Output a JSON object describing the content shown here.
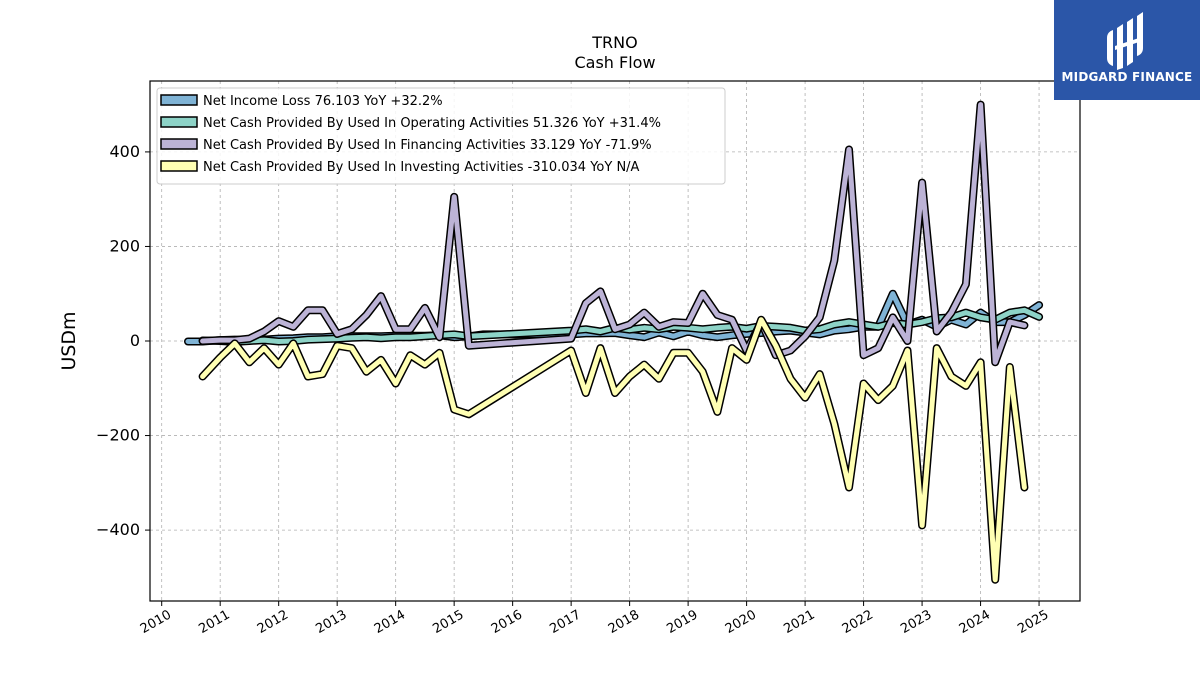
{
  "logo": {
    "text": "MIDGARD FINANCE"
  },
  "chart_data": {
    "type": "line",
    "title": "TRNO",
    "subtitle": "Cash Flow",
    "xlabel": "",
    "ylabel": "USDm",
    "xlim": [
      2009.8,
      2025.7
    ],
    "ylim": [
      -550,
      550
    ],
    "yticks": [
      -400,
      -200,
      0,
      200,
      400
    ],
    "xticks": [
      2010,
      2011,
      2012,
      2013,
      2014,
      2015,
      2016,
      2017,
      2018,
      2019,
      2020,
      2021,
      2022,
      2023,
      2024,
      2025
    ],
    "xtick_labels": [
      "2010",
      "2011",
      "2012",
      "2013",
      "2014",
      "2015",
      "2016",
      "2017",
      "2018",
      "2019",
      "2020",
      "2021",
      "2022",
      "2023",
      "2024",
      "2025"
    ],
    "grid": true,
    "legend_position": "top-left",
    "series": [
      {
        "name": "Net Income Loss  76.103 YoY +32.2%",
        "color": "#7fb3d5",
        "points": [
          [
            2010.45,
            -1
          ],
          [
            2010.7,
            -1
          ],
          [
            2011.0,
            2
          ],
          [
            2011.25,
            3
          ],
          [
            2011.5,
            2
          ],
          [
            2011.75,
            3
          ],
          [
            2012.0,
            5
          ],
          [
            2012.25,
            6
          ],
          [
            2012.5,
            8
          ],
          [
            2012.75,
            8
          ],
          [
            2013.0,
            10
          ],
          [
            2013.25,
            10
          ],
          [
            2013.5,
            10
          ],
          [
            2013.75,
            10
          ],
          [
            2014.0,
            11
          ],
          [
            2014.25,
            11
          ],
          [
            2014.5,
            11
          ],
          [
            2014.75,
            12
          ],
          [
            2015.0,
            8
          ],
          [
            2015.25,
            10
          ],
          [
            2015.5,
            14
          ],
          [
            2017.0,
            14
          ],
          [
            2017.25,
            16
          ],
          [
            2017.5,
            16
          ],
          [
            2017.75,
            17
          ],
          [
            2018.0,
            12
          ],
          [
            2018.25,
            8
          ],
          [
            2018.5,
            18
          ],
          [
            2018.75,
            10
          ],
          [
            2019.0,
            20
          ],
          [
            2019.25,
            12
          ],
          [
            2019.5,
            8
          ],
          [
            2019.75,
            12
          ],
          [
            2020.0,
            15
          ],
          [
            2020.25,
            17
          ],
          [
            2020.5,
            20
          ],
          [
            2020.75,
            22
          ],
          [
            2021.0,
            18
          ],
          [
            2021.25,
            14
          ],
          [
            2021.5,
            22
          ],
          [
            2021.75,
            25
          ],
          [
            2022.0,
            30
          ],
          [
            2022.25,
            30
          ],
          [
            2022.5,
            100
          ],
          [
            2022.75,
            35
          ],
          [
            2023.0,
            45
          ],
          [
            2023.25,
            30
          ],
          [
            2023.5,
            45
          ],
          [
            2023.75,
            35
          ],
          [
            2024.0,
            60
          ],
          [
            2024.25,
            40
          ],
          [
            2024.5,
            40
          ],
          [
            2024.75,
            55
          ],
          [
            2025.0,
            76
          ]
        ]
      },
      {
        "name": "Net Cash Provided By Used In Operating Activities  51.326 YoY +31.4%",
        "color": "#8dd3c7",
        "points": [
          [
            2010.7,
            1
          ],
          [
            2011.0,
            0
          ],
          [
            2011.25,
            -2
          ],
          [
            2011.5,
            0
          ],
          [
            2011.75,
            2
          ],
          [
            2012.0,
            -1
          ],
          [
            2012.25,
            0
          ],
          [
            2012.5,
            3
          ],
          [
            2012.75,
            4
          ],
          [
            2013.0,
            5
          ],
          [
            2013.25,
            7
          ],
          [
            2013.5,
            8
          ],
          [
            2013.75,
            6
          ],
          [
            2014.0,
            8
          ],
          [
            2014.25,
            8
          ],
          [
            2014.5,
            10
          ],
          [
            2014.75,
            12
          ],
          [
            2015.0,
            14
          ],
          [
            2015.25,
            10
          ],
          [
            2017.0,
            22
          ],
          [
            2017.25,
            25
          ],
          [
            2017.5,
            20
          ],
          [
            2017.75,
            28
          ],
          [
            2018.0,
            24
          ],
          [
            2018.25,
            28
          ],
          [
            2018.5,
            25
          ],
          [
            2018.75,
            30
          ],
          [
            2019.0,
            28
          ],
          [
            2019.25,
            25
          ],
          [
            2019.5,
            28
          ],
          [
            2019.75,
            30
          ],
          [
            2020.0,
            26
          ],
          [
            2020.25,
            32
          ],
          [
            2020.5,
            30
          ],
          [
            2020.75,
            28
          ],
          [
            2021.0,
            22
          ],
          [
            2021.25,
            25
          ],
          [
            2021.5,
            35
          ],
          [
            2021.75,
            40
          ],
          [
            2022.0,
            35
          ],
          [
            2022.25,
            30
          ],
          [
            2022.5,
            38
          ],
          [
            2022.75,
            35
          ],
          [
            2023.0,
            40
          ],
          [
            2023.25,
            48
          ],
          [
            2023.5,
            50
          ],
          [
            2023.75,
            60
          ],
          [
            2024.0,
            50
          ],
          [
            2024.25,
            45
          ],
          [
            2024.5,
            60
          ],
          [
            2024.75,
            65
          ],
          [
            2025.0,
            51
          ]
        ]
      },
      {
        "name": "Net Cash Provided By Used In Financing Activities  33.129 YoY -71.9%",
        "color": "#bcb3d6",
        "points": [
          [
            2010.7,
            0
          ],
          [
            2011.0,
            2
          ],
          [
            2011.25,
            2
          ],
          [
            2011.5,
            5
          ],
          [
            2011.75,
            20
          ],
          [
            2012.0,
            42
          ],
          [
            2012.25,
            30
          ],
          [
            2012.5,
            65
          ],
          [
            2012.75,
            65
          ],
          [
            2013.0,
            15
          ],
          [
            2013.25,
            25
          ],
          [
            2013.5,
            55
          ],
          [
            2013.75,
            95
          ],
          [
            2014.0,
            25
          ],
          [
            2014.25,
            25
          ],
          [
            2014.5,
            70
          ],
          [
            2014.75,
            8
          ],
          [
            2015.0,
            305
          ],
          [
            2015.25,
            -10
          ],
          [
            2017.0,
            5
          ],
          [
            2017.25,
            80
          ],
          [
            2017.5,
            105
          ],
          [
            2017.75,
            25
          ],
          [
            2018.0,
            35
          ],
          [
            2018.25,
            60
          ],
          [
            2018.5,
            30
          ],
          [
            2018.75,
            40
          ],
          [
            2019.0,
            38
          ],
          [
            2019.25,
            100
          ],
          [
            2019.5,
            55
          ],
          [
            2019.75,
            45
          ],
          [
            2020.0,
            -20
          ],
          [
            2020.25,
            40
          ],
          [
            2020.5,
            -30
          ],
          [
            2020.75,
            -20
          ],
          [
            2021.0,
            10
          ],
          [
            2021.25,
            50
          ],
          [
            2021.5,
            170
          ],
          [
            2021.75,
            405
          ],
          [
            2022.0,
            -30
          ],
          [
            2022.25,
            -15
          ],
          [
            2022.5,
            50
          ],
          [
            2022.75,
            0
          ],
          [
            2023.0,
            335
          ],
          [
            2023.25,
            20
          ],
          [
            2023.5,
            60
          ],
          [
            2023.75,
            120
          ],
          [
            2024.0,
            500
          ],
          [
            2024.25,
            -45
          ],
          [
            2024.5,
            40
          ],
          [
            2024.75,
            33
          ]
        ]
      },
      {
        "name": "Net Cash Provided By Used In Investing Activities  -310.034 YoY N/A",
        "color": "#ffffb3",
        "points": [
          [
            2010.7,
            -75
          ],
          [
            2011.0,
            -35
          ],
          [
            2011.25,
            -5
          ],
          [
            2011.5,
            -45
          ],
          [
            2011.75,
            -15
          ],
          [
            2012.0,
            -50
          ],
          [
            2012.25,
            -5
          ],
          [
            2012.5,
            -75
          ],
          [
            2012.75,
            -70
          ],
          [
            2013.0,
            -10
          ],
          [
            2013.25,
            -15
          ],
          [
            2013.5,
            -65
          ],
          [
            2013.75,
            -40
          ],
          [
            2014.0,
            -90
          ],
          [
            2014.25,
            -30
          ],
          [
            2014.5,
            -50
          ],
          [
            2014.75,
            -25
          ],
          [
            2015.0,
            -145
          ],
          [
            2015.25,
            -155
          ],
          [
            2017.0,
            -20
          ],
          [
            2017.25,
            -110
          ],
          [
            2017.5,
            -15
          ],
          [
            2017.75,
            -110
          ],
          [
            2018.0,
            -75
          ],
          [
            2018.25,
            -50
          ],
          [
            2018.5,
            -80
          ],
          [
            2018.75,
            -25
          ],
          [
            2019.0,
            -25
          ],
          [
            2019.25,
            -65
          ],
          [
            2019.5,
            -150
          ],
          [
            2019.75,
            -15
          ],
          [
            2020.0,
            -40
          ],
          [
            2020.25,
            45
          ],
          [
            2020.5,
            -10
          ],
          [
            2020.75,
            -80
          ],
          [
            2021.0,
            -120
          ],
          [
            2021.25,
            -70
          ],
          [
            2021.5,
            -175
          ],
          [
            2021.75,
            -310
          ],
          [
            2022.0,
            -90
          ],
          [
            2022.25,
            -125
          ],
          [
            2022.5,
            -95
          ],
          [
            2022.75,
            -20
          ],
          [
            2023.0,
            -390
          ],
          [
            2023.25,
            -15
          ],
          [
            2023.5,
            -75
          ],
          [
            2023.75,
            -95
          ],
          [
            2024.0,
            -45
          ],
          [
            2024.25,
            -505
          ],
          [
            2024.5,
            -55
          ],
          [
            2024.75,
            -310
          ]
        ]
      }
    ]
  }
}
